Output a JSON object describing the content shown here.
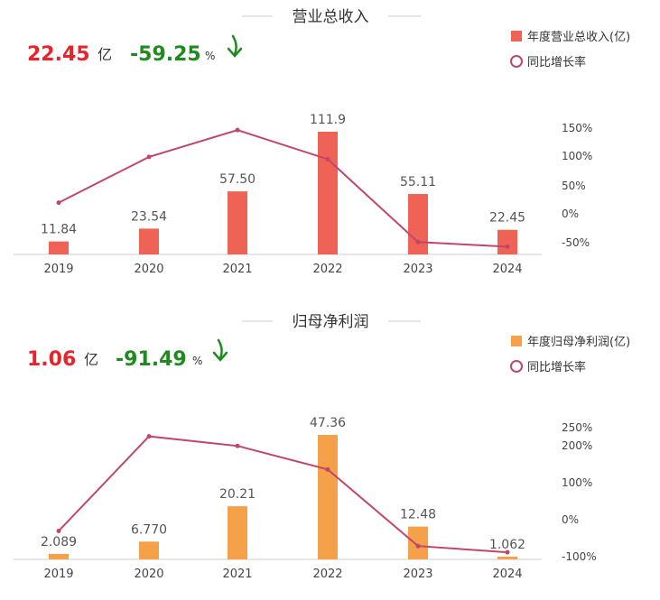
{
  "chart_data": [
    {
      "type": "bar+line",
      "title": "营业总收入",
      "headline": {
        "value": "22.45",
        "unit": "亿",
        "growth": "-59.25",
        "growth_unit": "%"
      },
      "categories": [
        "2019",
        "2020",
        "2021",
        "2022",
        "2023",
        "2024"
      ],
      "series": [
        {
          "name": "年度营业总收入(亿)",
          "kind": "bar",
          "color": "#ef6356",
          "values": [
            11.84,
            23.54,
            57.5,
            111.9,
            55.11,
            22.45
          ],
          "labels": [
            "11.84",
            "23.54",
            "57.50",
            "111.9",
            "55.11",
            "22.45"
          ]
        },
        {
          "name": "同比增长率",
          "kind": "line",
          "color": "#c0476a",
          "values": [
            18,
            98,
            145,
            94,
            -51,
            -59
          ]
        }
      ],
      "right_axis": {
        "ticks": [
          "150%",
          "100%",
          "50%",
          "0%",
          "-50%"
        ],
        "tick_values": [
          150,
          100,
          50,
          0,
          -50
        ]
      }
    },
    {
      "type": "bar+line",
      "title": "归母净利润",
      "headline": {
        "value": "1.06",
        "unit": "亿",
        "growth": "-91.49",
        "growth_unit": "%"
      },
      "categories": [
        "2019",
        "2020",
        "2021",
        "2022",
        "2023",
        "2024"
      ],
      "series": [
        {
          "name": "年度归母净利润(亿)",
          "kind": "bar",
          "color": "#f5a14a",
          "values": [
            2.089,
            6.77,
            20.21,
            47.36,
            12.48,
            1.062
          ],
          "labels": [
            "2.089",
            "6.770",
            "20.21",
            "47.36",
            "12.48",
            "1.062"
          ]
        },
        {
          "name": "同比增长率",
          "kind": "line",
          "color": "#c0476a",
          "values": [
            -33,
            224,
            198,
            134,
            -74,
            -91
          ]
        }
      ],
      "right_axis": {
        "ticks": [
          "250%",
          "200%",
          "100%",
          "0%",
          "-100%"
        ],
        "tick_values": [
          250,
          200,
          100,
          0,
          -100
        ]
      }
    }
  ],
  "colors": {
    "value_red": "#e8232a",
    "growth_green": "#1f8a1f",
    "axis": "#cccccc",
    "text": "#555555"
  }
}
